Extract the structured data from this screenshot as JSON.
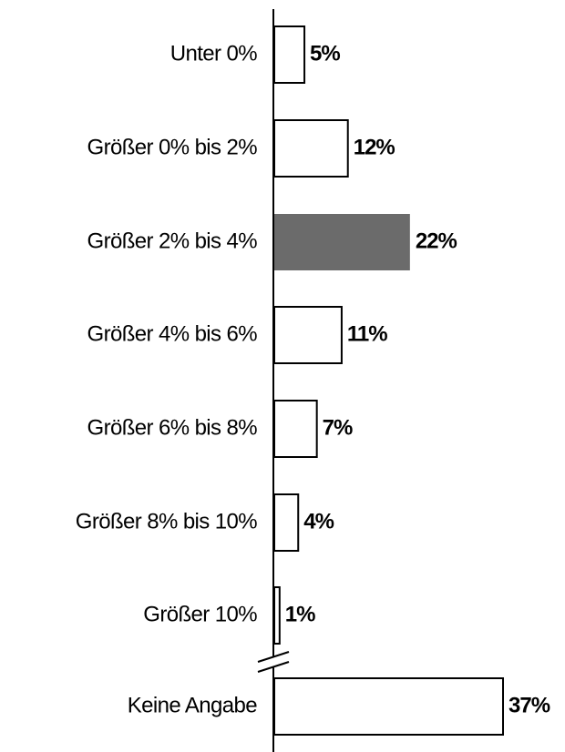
{
  "chart_data": {
    "type": "hbar",
    "categories": [
      "Unter 0%",
      "Größer 0% bis 2%",
      "Größer 2% bis 4%",
      "Größer 4% bis 6%",
      "Größer 6% bis 8%",
      "Größer 8% bis 10%",
      "Größer 10%",
      "Keine Angabe"
    ],
    "values": [
      5,
      12,
      22,
      11,
      7,
      4,
      1,
      37
    ],
    "value_labels": [
      "5%",
      "12%",
      "22%",
      "11%",
      "7%",
      "4%",
      "1%",
      "37%"
    ],
    "colors": [
      "#ffffff",
      "#ffffff",
      "#6b6b6b",
      "#ffffff",
      "#ffffff",
      "#ffffff",
      "#ffffff",
      "#ffffff"
    ]
  }
}
